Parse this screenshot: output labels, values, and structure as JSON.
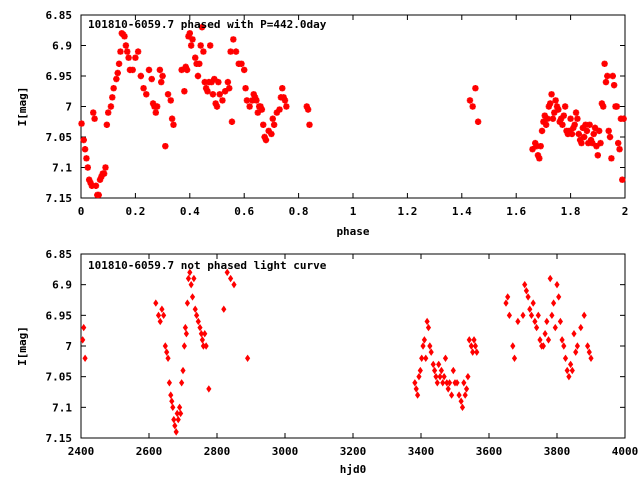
{
  "chart_data": [
    {
      "type": "scatter",
      "title": "101810-6059.7 phased with P=442.0day",
      "xlabel": "phase",
      "ylabel": "I[mag]",
      "xlim": [
        0,
        2
      ],
      "ylim": [
        7.15,
        6.85
      ],
      "y_inverted": true,
      "xticks": [
        "0",
        "0.2",
        "0.4",
        "0.6",
        "0.8",
        "1",
        "1.2",
        "1.4",
        "1.6",
        "1.8",
        "2"
      ],
      "yticks": [
        "6.85",
        "6.9",
        "6.95",
        "7",
        "7.05",
        "7.1",
        "7.15"
      ],
      "marker": "star",
      "color": "#ff0000",
      "grid": false,
      "points": [
        [
          0.002,
          7.028
        ],
        [
          0.01,
          7.055
        ],
        [
          0.015,
          7.07
        ],
        [
          0.02,
          7.085
        ],
        [
          0.025,
          7.1
        ],
        [
          0.03,
          7.12
        ],
        [
          0.035,
          7.125
        ],
        [
          0.04,
          7.13
        ],
        [
          0.045,
          7.01
        ],
        [
          0.05,
          7.02
        ],
        [
          0.055,
          7.13
        ],
        [
          0.06,
          7.145
        ],
        [
          0.065,
          7.145
        ],
        [
          0.07,
          7.12
        ],
        [
          0.075,
          7.115
        ],
        [
          0.08,
          7.11
        ],
        [
          0.085,
          7.11
        ],
        [
          0.09,
          7.1
        ],
        [
          0.095,
          7.03
        ],
        [
          0.1,
          7.01
        ],
        [
          0.11,
          7.0
        ],
        [
          0.115,
          6.985
        ],
        [
          0.12,
          6.97
        ],
        [
          0.13,
          6.955
        ],
        [
          0.135,
          6.945
        ],
        [
          0.14,
          6.93
        ],
        [
          0.145,
          6.91
        ],
        [
          0.15,
          6.88
        ],
        [
          0.155,
          6.882
        ],
        [
          0.16,
          6.885
        ],
        [
          0.165,
          6.9
        ],
        [
          0.17,
          6.91
        ],
        [
          0.175,
          6.92
        ],
        [
          0.18,
          6.94
        ],
        [
          0.19,
          6.94
        ],
        [
          0.2,
          6.92
        ],
        [
          0.21,
          6.91
        ],
        [
          0.22,
          6.95
        ],
        [
          0.23,
          6.97
        ],
        [
          0.24,
          6.98
        ],
        [
          0.25,
          6.94
        ],
        [
          0.26,
          6.955
        ],
        [
          0.265,
          6.995
        ],
        [
          0.27,
          7.0
        ],
        [
          0.275,
          7.01
        ],
        [
          0.28,
          7.0
        ],
        [
          0.29,
          6.94
        ],
        [
          0.295,
          6.96
        ],
        [
          0.3,
          6.95
        ],
        [
          0.31,
          7.065
        ],
        [
          0.32,
          6.98
        ],
        [
          0.33,
          6.99
        ],
        [
          0.335,
          7.02
        ],
        [
          0.34,
          7.03
        ],
        [
          0.37,
          6.94
        ],
        [
          0.38,
          6.975
        ],
        [
          0.385,
          6.935
        ],
        [
          0.39,
          6.94
        ],
        [
          0.395,
          6.885
        ],
        [
          0.4,
          6.88
        ],
        [
          0.405,
          6.9
        ],
        [
          0.41,
          6.89
        ],
        [
          0.42,
          6.92
        ],
        [
          0.425,
          6.93
        ],
        [
          0.43,
          6.95
        ],
        [
          0.435,
          6.93
        ],
        [
          0.44,
          6.9
        ],
        [
          0.445,
          6.87
        ],
        [
          0.45,
          6.91
        ],
        [
          0.455,
          6.96
        ],
        [
          0.46,
          6.97
        ],
        [
          0.465,
          6.975
        ],
        [
          0.47,
          6.96
        ],
        [
          0.475,
          6.9
        ],
        [
          0.48,
          6.96
        ],
        [
          0.485,
          6.98
        ],
        [
          0.49,
          6.955
        ],
        [
          0.495,
          6.995
        ],
        [
          0.5,
          7.0
        ],
        [
          0.505,
          6.96
        ],
        [
          0.51,
          6.98
        ],
        [
          0.52,
          6.99
        ],
        [
          0.53,
          6.975
        ],
        [
          0.54,
          6.96
        ],
        [
          0.545,
          6.97
        ],
        [
          0.55,
          6.91
        ],
        [
          0.555,
          7.025
        ],
        [
          0.56,
          6.89
        ],
        [
          0.57,
          6.91
        ],
        [
          0.58,
          6.93
        ],
        [
          0.59,
          6.93
        ],
        [
          0.6,
          6.94
        ],
        [
          0.605,
          6.97
        ],
        [
          0.61,
          6.99
        ],
        [
          0.62,
          7.0
        ],
        [
          0.63,
          6.99
        ],
        [
          0.635,
          6.98
        ],
        [
          0.64,
          6.985
        ],
        [
          0.645,
          6.99
        ],
        [
          0.65,
          7.01
        ],
        [
          0.655,
          7.0
        ],
        [
          0.66,
          7.0
        ],
        [
          0.665,
          7.005
        ],
        [
          0.67,
          7.03
        ],
        [
          0.675,
          7.05
        ],
        [
          0.68,
          7.055
        ],
        [
          0.69,
          7.04
        ],
        [
          0.7,
          7.045
        ],
        [
          0.705,
          7.02
        ],
        [
          0.71,
          7.03
        ],
        [
          0.72,
          7.01
        ],
        [
          0.73,
          7.005
        ],
        [
          0.735,
          6.985
        ],
        [
          0.74,
          6.97
        ],
        [
          0.745,
          6.985
        ],
        [
          0.75,
          6.99
        ],
        [
          0.755,
          7.0
        ],
        [
          0.83,
          7.0
        ],
        [
          0.835,
          7.005
        ],
        [
          0.84,
          7.03
        ],
        [
          1.43,
          6.99
        ],
        [
          1.44,
          7.0
        ],
        [
          1.45,
          6.97
        ],
        [
          1.46,
          7.025
        ],
        [
          1.66,
          7.07
        ],
        [
          1.67,
          7.06
        ],
        [
          1.675,
          7.065
        ],
        [
          1.68,
          7.08
        ],
        [
          1.685,
          7.085
        ],
        [
          1.69,
          7.065
        ],
        [
          1.695,
          7.04
        ],
        [
          1.7,
          7.025
        ],
        [
          1.705,
          7.015
        ],
        [
          1.71,
          7.03
        ],
        [
          1.715,
          7.02
        ],
        [
          1.72,
          7.0
        ],
        [
          1.725,
          6.995
        ],
        [
          1.73,
          6.98
        ],
        [
          1.735,
          7.02
        ],
        [
          1.74,
          7.01
        ],
        [
          1.745,
          6.99
        ],
        [
          1.75,
          7.0
        ],
        [
          1.755,
          7.005
        ],
        [
          1.76,
          7.025
        ],
        [
          1.765,
          7.02
        ],
        [
          1.77,
          7.03
        ],
        [
          1.775,
          7.015
        ],
        [
          1.78,
          7.0
        ],
        [
          1.785,
          7.04
        ],
        [
          1.79,
          7.045
        ],
        [
          1.795,
          7.04
        ],
        [
          1.8,
          7.02
        ],
        [
          1.805,
          7.045
        ],
        [
          1.81,
          7.035
        ],
        [
          1.815,
          7.03
        ],
        [
          1.82,
          7.01
        ],
        [
          1.825,
          7.02
        ],
        [
          1.83,
          7.045
        ],
        [
          1.835,
          7.055
        ],
        [
          1.84,
          7.06
        ],
        [
          1.845,
          7.035
        ],
        [
          1.85,
          7.05
        ],
        [
          1.855,
          7.03
        ],
        [
          1.86,
          7.04
        ],
        [
          1.865,
          7.06
        ],
        [
          1.87,
          7.03
        ],
        [
          1.875,
          7.055
        ],
        [
          1.88,
          7.06
        ],
        [
          1.885,
          7.045
        ],
        [
          1.89,
          7.035
        ],
        [
          1.895,
          7.065
        ],
        [
          1.9,
          7.08
        ],
        [
          1.905,
          7.04
        ],
        [
          1.91,
          7.06
        ],
        [
          1.915,
          6.995
        ],
        [
          1.92,
          7.0
        ],
        [
          1.925,
          6.93
        ],
        [
          1.93,
          6.96
        ],
        [
          1.935,
          6.95
        ],
        [
          1.94,
          7.04
        ],
        [
          1.945,
          7.05
        ],
        [
          1.95,
          7.085
        ],
        [
          1.955,
          6.95
        ],
        [
          1.96,
          6.965
        ],
        [
          1.965,
          7.0
        ],
        [
          1.97,
          7.0
        ],
        [
          1.975,
          7.06
        ],
        [
          1.98,
          7.07
        ],
        [
          1.985,
          7.02
        ],
        [
          1.99,
          7.12
        ],
        [
          1.995,
          7.02
        ]
      ]
    },
    {
      "type": "scatter",
      "title": "101810-6059.7 not phased light curve",
      "xlabel": "hjd0",
      "ylabel": "I[mag]",
      "xlim": [
        2400,
        4000
      ],
      "ylim": [
        7.15,
        6.85
      ],
      "y_inverted": true,
      "xticks": [
        "2400",
        "2600",
        "2800",
        "3000",
        "3200",
        "3400",
        "3600",
        "3800",
        "4000"
      ],
      "yticks": [
        "6.85",
        "6.9",
        "6.95",
        "7",
        "7.05",
        "7.1",
        "7.15"
      ],
      "marker": "diamond",
      "color": "#ff0000",
      "grid": false,
      "points": [
        [
          2405,
          6.99
        ],
        [
          2408,
          6.97
        ],
        [
          2412,
          7.02
        ],
        [
          2620,
          6.93
        ],
        [
          2628,
          6.95
        ],
        [
          2633,
          6.96
        ],
        [
          2638,
          6.94
        ],
        [
          2643,
          6.95
        ],
        [
          2648,
          7.0
        ],
        [
          2652,
          7.01
        ],
        [
          2656,
          7.02
        ],
        [
          2660,
          7.06
        ],
        [
          2664,
          7.08
        ],
        [
          2667,
          7.09
        ],
        [
          2670,
          7.1
        ],
        [
          2673,
          7.12
        ],
        [
          2676,
          7.13
        ],
        [
          2680,
          7.14
        ],
        [
          2683,
          7.11
        ],
        [
          2686,
          7.12
        ],
        [
          2690,
          7.1
        ],
        [
          2693,
          7.11
        ],
        [
          2696,
          7.06
        ],
        [
          2700,
          7.04
        ],
        [
          2704,
          7.0
        ],
        [
          2707,
          6.97
        ],
        [
          2710,
          6.98
        ],
        [
          2713,
          6.93
        ],
        [
          2716,
          6.89
        ],
        [
          2720,
          6.88
        ],
        [
          2724,
          6.9
        ],
        [
          2728,
          6.92
        ],
        [
          2732,
          6.89
        ],
        [
          2736,
          6.94
        ],
        [
          2740,
          6.95
        ],
        [
          2745,
          6.96
        ],
        [
          2750,
          6.97
        ],
        [
          2754,
          6.98
        ],
        [
          2757,
          6.99
        ],
        [
          2760,
          7.0
        ],
        [
          2764,
          6.98
        ],
        [
          2768,
          7.0
        ],
        [
          2776,
          7.07
        ],
        [
          2820,
          6.94
        ],
        [
          2830,
          6.88
        ],
        [
          2840,
          6.89
        ],
        [
          2850,
          6.9
        ],
        [
          2890,
          7.02
        ],
        [
          3382,
          7.06
        ],
        [
          3386,
          7.07
        ],
        [
          3390,
          7.08
        ],
        [
          3394,
          7.05
        ],
        [
          3398,
          7.04
        ],
        [
          3402,
          7.02
        ],
        [
          3406,
          7.0
        ],
        [
          3410,
          6.99
        ],
        [
          3414,
          7.02
        ],
        [
          3418,
          6.96
        ],
        [
          3422,
          6.97
        ],
        [
          3426,
          7.0
        ],
        [
          3430,
          7.01
        ],
        [
          3436,
          7.03
        ],
        [
          3440,
          7.04
        ],
        [
          3444,
          7.05
        ],
        [
          3448,
          7.06
        ],
        [
          3452,
          7.03
        ],
        [
          3456,
          7.05
        ],
        [
          3460,
          7.04
        ],
        [
          3464,
          7.06
        ],
        [
          3468,
          7.05
        ],
        [
          3472,
          7.02
        ],
        [
          3476,
          7.06
        ],
        [
          3480,
          7.07
        ],
        [
          3484,
          7.06
        ],
        [
          3490,
          7.08
        ],
        [
          3495,
          7.04
        ],
        [
          3500,
          7.06
        ],
        [
          3506,
          7.06
        ],
        [
          3512,
          7.08
        ],
        [
          3518,
          7.09
        ],
        [
          3522,
          7.1
        ],
        [
          3526,
          7.06
        ],
        [
          3530,
          7.08
        ],
        [
          3534,
          7.07
        ],
        [
          3538,
          7.05
        ],
        [
          3542,
          6.99
        ],
        [
          3548,
          7.0
        ],
        [
          3552,
          7.01
        ],
        [
          3556,
          6.99
        ],
        [
          3560,
          7.0
        ],
        [
          3564,
          7.01
        ],
        [
          3650,
          6.93
        ],
        [
          3655,
          6.92
        ],
        [
          3660,
          6.95
        ],
        [
          3670,
          7.0
        ],
        [
          3675,
          7.02
        ],
        [
          3685,
          6.96
        ],
        [
          3700,
          6.95
        ],
        [
          3705,
          6.9
        ],
        [
          3710,
          6.91
        ],
        [
          3715,
          6.92
        ],
        [
          3720,
          6.94
        ],
        [
          3725,
          6.95
        ],
        [
          3730,
          6.93
        ],
        [
          3735,
          6.96
        ],
        [
          3740,
          6.97
        ],
        [
          3745,
          6.95
        ],
        [
          3750,
          6.99
        ],
        [
          3755,
          7.0
        ],
        [
          3760,
          7.0
        ],
        [
          3765,
          6.98
        ],
        [
          3770,
          6.96
        ],
        [
          3775,
          6.99
        ],
        [
          3780,
          6.89
        ],
        [
          3785,
          6.95
        ],
        [
          3790,
          6.93
        ],
        [
          3795,
          6.97
        ],
        [
          3800,
          6.9
        ],
        [
          3805,
          6.92
        ],
        [
          3810,
          6.96
        ],
        [
          3815,
          6.99
        ],
        [
          3820,
          7.0
        ],
        [
          3825,
          7.02
        ],
        [
          3830,
          7.04
        ],
        [
          3835,
          7.05
        ],
        [
          3840,
          7.03
        ],
        [
          3845,
          7.04
        ],
        [
          3850,
          6.98
        ],
        [
          3855,
          7.01
        ],
        [
          3860,
          7.0
        ],
        [
          3870,
          6.97
        ],
        [
          3880,
          6.95
        ],
        [
          3890,
          7.0
        ],
        [
          3895,
          7.01
        ],
        [
          3900,
          7.02
        ]
      ]
    }
  ]
}
